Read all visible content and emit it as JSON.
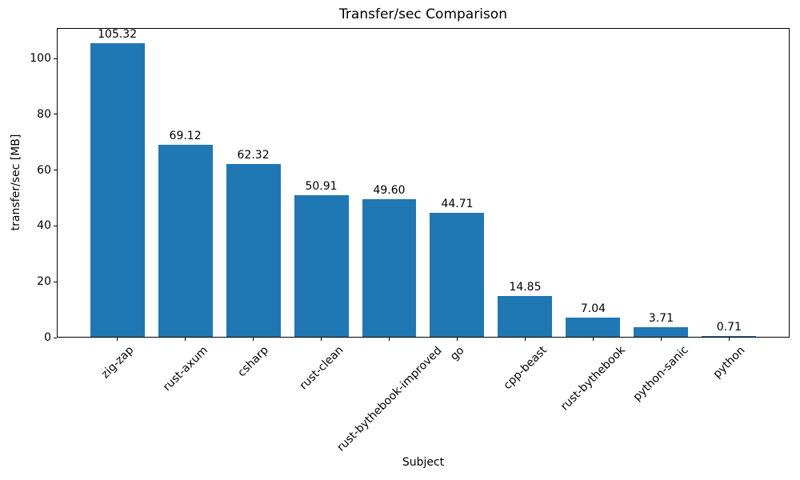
{
  "chart_data": {
    "type": "bar",
    "title": "Transfer/sec Comparison",
    "xlabel": "Subject",
    "ylabel": "transfer/sec [MB]",
    "categories": [
      "zig-zap",
      "rust-axum",
      "csharp",
      "rust-clean",
      "rust-bythebook-improved",
      "go",
      "cpp-beast",
      "rust-bythebook",
      "python-sanic",
      "python"
    ],
    "values": [
      105.32,
      69.12,
      62.32,
      50.91,
      49.6,
      44.71,
      14.85,
      7.04,
      3.71,
      0.71
    ],
    "value_labels": [
      "105.32",
      "69.12",
      "62.32",
      "50.91",
      "49.60",
      "44.71",
      "14.85",
      "7.04",
      "3.71",
      "0.71"
    ],
    "yticks": [
      0,
      20,
      40,
      60,
      80,
      100
    ],
    "ylim": [
      0,
      110.9
    ],
    "xlim": [
      -0.89,
      9.89
    ],
    "bar_width_units": 0.8,
    "x_tick_rotation_deg": 45,
    "bar_color": "#1f77b4",
    "axis_color": "#000000",
    "grid": false,
    "legend": "none"
  }
}
